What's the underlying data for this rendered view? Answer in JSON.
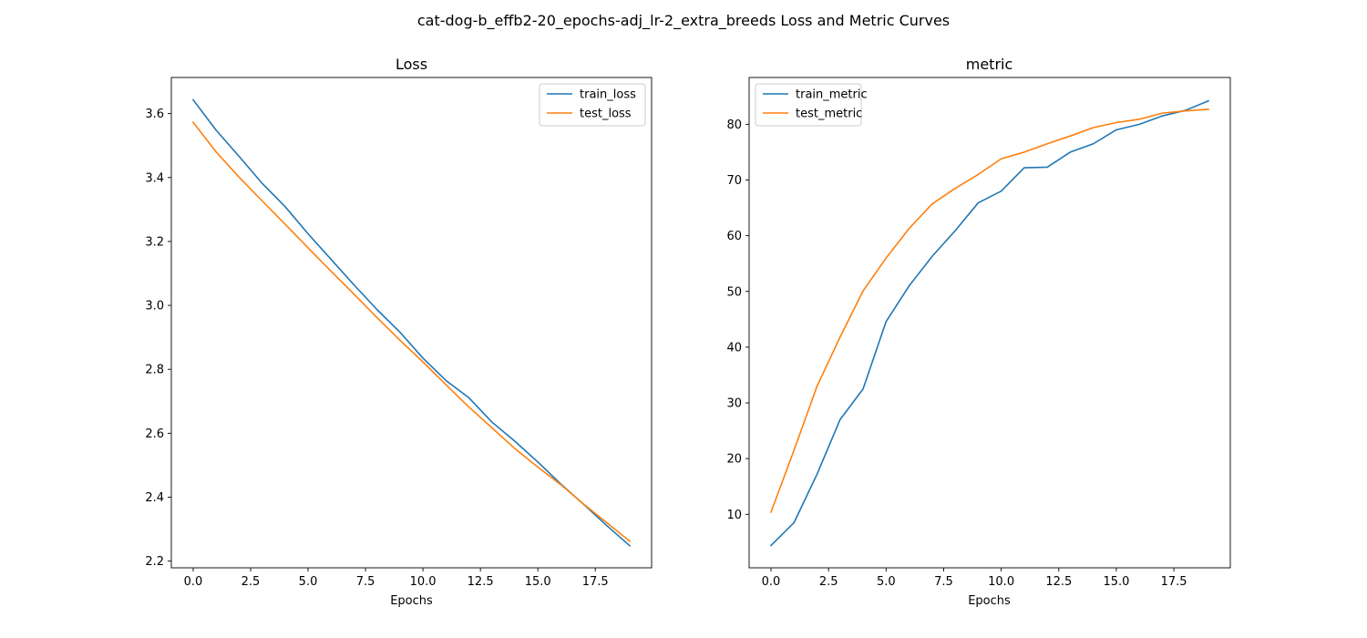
{
  "figure_title": "cat-dog-b_effb2-20_epochs-adj_lr-2_extra_breeds Loss and Metric Curves",
  "colors": {
    "train": "#1f77b4",
    "test": "#ff7f0e"
  },
  "chart_data": [
    {
      "type": "line",
      "title": "Loss",
      "xlabel": "Epochs",
      "ylabel": "",
      "legend_position": "upper right",
      "grid": false,
      "xlim": [
        -0.95,
        19.95
      ],
      "ylim": [
        2.179,
        3.713
      ],
      "xticks": [
        0,
        2.5,
        5,
        7.5,
        10,
        12.5,
        15,
        17.5
      ],
      "xtick_labels": [
        "0.0",
        "2.5",
        "5.0",
        "7.5",
        "10.0",
        "12.5",
        "15.0",
        "17.5"
      ],
      "yticks": [
        2.2,
        2.4,
        2.6,
        2.8,
        3.0,
        3.2,
        3.4,
        3.6
      ],
      "ytick_labels": [
        "2.2",
        "2.4",
        "2.6",
        "2.8",
        "3.0",
        "3.2",
        "3.4",
        "3.6"
      ],
      "x": [
        0,
        1,
        2,
        3,
        4,
        5,
        6,
        7,
        8,
        9,
        10,
        11,
        12,
        13,
        14,
        15,
        16,
        17,
        18,
        19
      ],
      "series": [
        {
          "name": "train_loss",
          "color": "#1f77b4",
          "values": [
            3.643,
            3.548,
            3.466,
            3.382,
            3.309,
            3.224,
            3.144,
            3.064,
            2.987,
            2.916,
            2.835,
            2.765,
            2.711,
            2.635,
            2.575,
            2.51,
            2.441,
            2.377,
            2.311,
            2.248
          ]
        },
        {
          "name": "test_loss",
          "color": "#ff7f0e",
          "values": [
            3.573,
            3.48,
            3.401,
            3.327,
            3.254,
            3.18,
            3.107,
            3.035,
            2.962,
            2.891,
            2.823,
            2.752,
            2.682,
            2.617,
            2.552,
            2.494,
            2.439,
            2.378,
            2.32,
            2.262
          ]
        }
      ]
    },
    {
      "type": "line",
      "title": "metric",
      "xlabel": "Epochs",
      "ylabel": "",
      "legend_position": "upper left",
      "grid": false,
      "xlim": [
        -0.95,
        19.95
      ],
      "ylim": [
        0.4,
        88.4
      ],
      "xticks": [
        0,
        2.5,
        5,
        7.5,
        10,
        12.5,
        15,
        17.5
      ],
      "xtick_labels": [
        "0.0",
        "2.5",
        "5.0",
        "7.5",
        "10.0",
        "12.5",
        "15.0",
        "17.5"
      ],
      "yticks": [
        10,
        20,
        30,
        40,
        50,
        60,
        70,
        80
      ],
      "ytick_labels": [
        "10",
        "20",
        "30",
        "40",
        "50",
        "60",
        "70",
        "80"
      ],
      "x": [
        0,
        1,
        2,
        3,
        4,
        5,
        6,
        7,
        8,
        9,
        10,
        11,
        12,
        13,
        14,
        15,
        16,
        17,
        18,
        19
      ],
      "series": [
        {
          "name": "train_metric",
          "color": "#1f77b4",
          "values": [
            4.4,
            8.5,
            17.2,
            27.0,
            32.5,
            44.6,
            51.0,
            56.3,
            60.9,
            65.9,
            68.0,
            72.2,
            72.3,
            75.0,
            76.5,
            79.0,
            80.0,
            81.5,
            82.5,
            84.2
          ]
        },
        {
          "name": "test_metric",
          "color": "#ff7f0e",
          "values": [
            10.4,
            21.5,
            33.0,
            41.8,
            50.1,
            56.0,
            61.3,
            65.7,
            68.5,
            71.0,
            73.8,
            75.0,
            76.5,
            77.9,
            79.4,
            80.3,
            80.9,
            82.0,
            82.4,
            82.7
          ]
        }
      ]
    }
  ]
}
